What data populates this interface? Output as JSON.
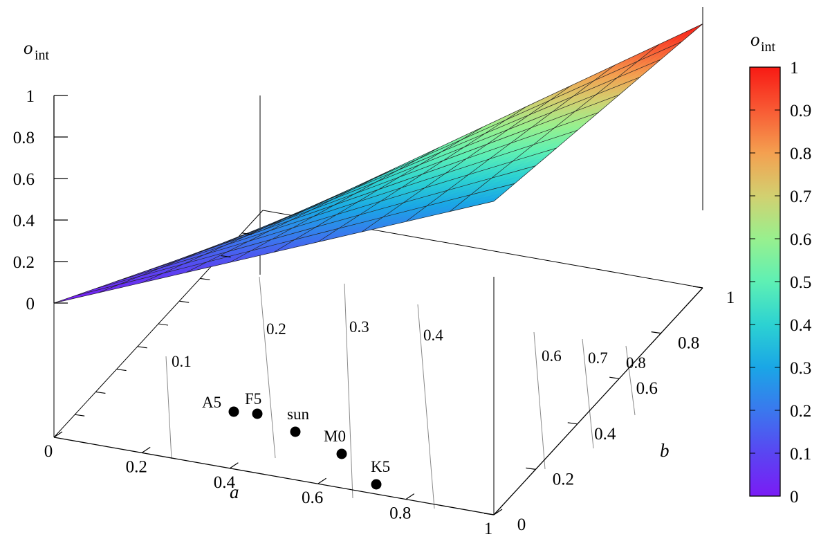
{
  "chart_data": {
    "type": "surface3d",
    "title": "",
    "axes": {
      "x": {
        "label": "a",
        "range": [
          0,
          1
        ],
        "ticks": [
          "0",
          "0.2",
          "0.4",
          "0.6",
          "0.8",
          "1"
        ]
      },
      "y": {
        "label": "b",
        "range": [
          0,
          1
        ],
        "ticks": [
          "0",
          "0.2",
          "0.4",
          "0.6",
          "0.8",
          "1"
        ]
      },
      "z": {
        "label_main": "o",
        "label_sub": "int",
        "range": [
          0,
          1
        ],
        "ticks": [
          "0",
          "0.2",
          "0.4",
          "0.6",
          "0.8",
          "1"
        ]
      }
    },
    "surface": {
      "description_function": "o_int(a,b) grid, values read from corners",
      "corners": {
        "a0_b0": 0.0,
        "a1_b0": 0.3,
        "a0_b1": 0.2,
        "a1_b1": 1.0
      },
      "grid_divisions": 10
    },
    "base_contours": {
      "levels": [
        "0.1",
        "0.2",
        "0.3",
        "0.4",
        "0.6",
        "0.7",
        "0.8"
      ]
    },
    "colorbar": {
      "label_main": "o",
      "label_sub": "int",
      "range": [
        0,
        1
      ],
      "ticks": [
        "0",
        "0.1",
        "0.2",
        "0.3",
        "0.4",
        "0.5",
        "0.6",
        "0.7",
        "0.8",
        "0.9",
        "1"
      ],
      "colormap": "rainbow (purple-blue-cyan-green-yellow-red)"
    },
    "points": [
      {
        "name": "A5",
        "a": 0.29,
        "b": 0.43
      },
      {
        "name": "F5",
        "a": 0.33,
        "b": 0.42
      },
      {
        "name": "sun",
        "a": 0.42,
        "b": 0.36
      },
      {
        "name": "M0",
        "a": 0.56,
        "b": 0.29
      },
      {
        "name": "K5",
        "a": 0.68,
        "b": 0.25
      }
    ]
  }
}
